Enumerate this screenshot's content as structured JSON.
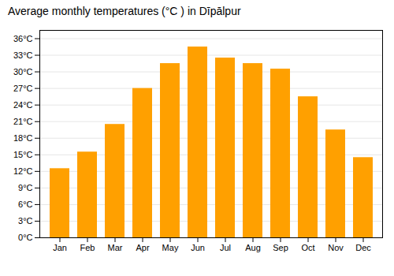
{
  "chart_data": {
    "type": "bar",
    "title": "Average monthly temperatures (°C ) in Dīpālpur",
    "categories": [
      "Jan",
      "Feb",
      "Mar",
      "Apr",
      "May",
      "Jun",
      "Jul",
      "Aug",
      "Sep",
      "Oct",
      "Nov",
      "Dec"
    ],
    "values": [
      12.5,
      15.5,
      20.5,
      27.0,
      31.5,
      34.5,
      32.5,
      31.5,
      30.5,
      25.5,
      19.5,
      14.5
    ],
    "color": "#FFA000",
    "ylim": [
      0,
      37.5
    ],
    "yticks": [
      {
        "value": 0,
        "label": "0°C"
      },
      {
        "value": 3,
        "label": "3°C"
      },
      {
        "value": 6,
        "label": "6°C"
      },
      {
        "value": 9,
        "label": "9°C"
      },
      {
        "value": 12,
        "label": "12°C"
      },
      {
        "value": 15,
        "label": "15°C"
      },
      {
        "value": 18,
        "label": "18°C"
      },
      {
        "value": 21,
        "label": "21°C"
      },
      {
        "value": 24,
        "label": "24°C"
      },
      {
        "value": 27,
        "label": "27°C"
      },
      {
        "value": 30,
        "label": "30°C"
      },
      {
        "value": 33,
        "label": "33°C"
      },
      {
        "value": 36,
        "label": "36°C"
      }
    ],
    "grid": true
  }
}
